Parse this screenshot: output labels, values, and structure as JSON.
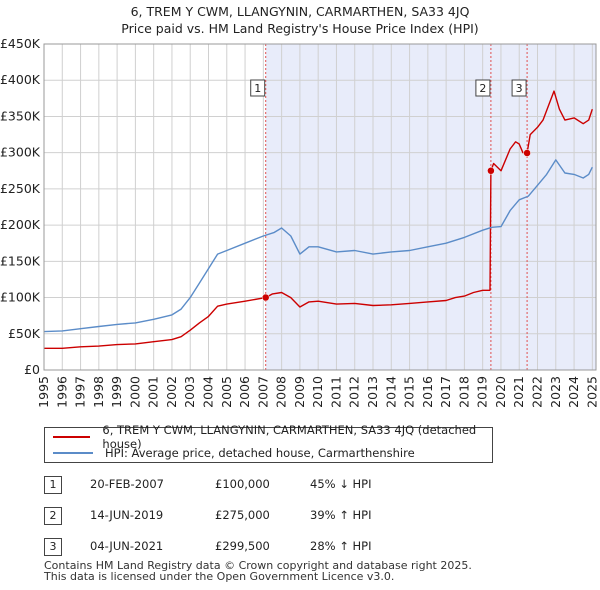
{
  "title_line1": "6, TREM Y CWM, LLANGYNIN, CARMARTHEN, SA33 4JQ",
  "title_line2": "Price paid vs. HM Land Registry's House Price Index (HPI)",
  "colors": {
    "property": "#cc0000",
    "hpi": "#5b8cc8",
    "shade": "#e8ecfa",
    "marker_line": "#e05050",
    "grid": "#d0d0d0"
  },
  "chart_data": {
    "type": "line",
    "title": "Price paid vs. HM Land Registry's House Price Index (HPI)",
    "xlabel": "",
    "ylabel": "",
    "xlim": [
      1995.0,
      2025.2
    ],
    "ylim": [
      0,
      450000
    ],
    "y_ticks": [
      0,
      50000,
      100000,
      150000,
      200000,
      250000,
      300000,
      350000,
      400000,
      450000
    ],
    "y_tick_labels": [
      "£0",
      "£50K",
      "£100K",
      "£150K",
      "£200K",
      "£250K",
      "£300K",
      "£350K",
      "£400K",
      "£450K"
    ],
    "x_ticks": [
      1995,
      1996,
      1997,
      1998,
      1999,
      2000,
      2001,
      2002,
      2003,
      2004,
      2005,
      2006,
      2007,
      2008,
      2009,
      2010,
      2011,
      2012,
      2013,
      2014,
      2015,
      2016,
      2017,
      2018,
      2019,
      2020,
      2021,
      2022,
      2023,
      2024,
      2025
    ],
    "shaded_range": [
      2007.13,
      2025.2
    ],
    "series": [
      {
        "name": "6, TREM Y CWM, LLANGYNIN, CARMARTHEN, SA33 4JQ (detached house)",
        "color": "#cc0000",
        "x": [
          1995.0,
          1996.0,
          1997.0,
          1998.0,
          1999.0,
          2000.0,
          2001.0,
          2002.0,
          2002.5,
          2003.0,
          2003.5,
          2004.0,
          2004.5,
          2005.0,
          2006.0,
          2007.13,
          2007.5,
          2008.0,
          2008.5,
          2009.0,
          2009.5,
          2010.0,
          2011.0,
          2012.0,
          2013.0,
          2014.0,
          2015.0,
          2016.0,
          2017.0,
          2017.5,
          2018.0,
          2018.5,
          2019.0,
          2019.4,
          2019.45,
          2019.6,
          2020.0,
          2020.5,
          2020.8,
          2021.0,
          2021.2,
          2021.43,
          2021.6,
          2022.0,
          2022.3,
          2022.6,
          2022.9,
          2023.2,
          2023.5,
          2024.0,
          2024.5,
          2024.8,
          2025.0
        ],
        "values": [
          30000,
          30000,
          32000,
          33000,
          35000,
          36000,
          39000,
          42000,
          46000,
          55000,
          65000,
          74000,
          88000,
          91000,
          95000,
          100000,
          105000,
          107000,
          100000,
          87000,
          94000,
          95000,
          91000,
          92000,
          89000,
          90000,
          92000,
          94000,
          96000,
          100000,
          102000,
          107000,
          110000,
          110000,
          275000,
          285000,
          275000,
          305000,
          315000,
          312000,
          300000,
          299500,
          325000,
          335000,
          345000,
          365000,
          385000,
          360000,
          345000,
          348000,
          340000,
          345000,
          360000
        ]
      },
      {
        "name": "HPI: Average price, detached house, Carmarthenshire",
        "color": "#5b8cc8",
        "x": [
          1995.0,
          1996.0,
          1997.0,
          1998.0,
          1999.0,
          2000.0,
          2001.0,
          2002.0,
          2002.5,
          2003.0,
          2003.5,
          2004.0,
          2004.5,
          2005.0,
          2006.0,
          2007.0,
          2007.6,
          2008.0,
          2008.5,
          2009.0,
          2009.5,
          2010.0,
          2011.0,
          2012.0,
          2013.0,
          2014.0,
          2015.0,
          2016.0,
          2017.0,
          2018.0,
          2019.0,
          2019.5,
          2020.0,
          2020.5,
          2021.0,
          2021.5,
          2022.0,
          2022.5,
          2023.0,
          2023.5,
          2024.0,
          2024.5,
          2024.8,
          2025.0
        ],
        "values": [
          53000,
          54000,
          57000,
          60000,
          63000,
          65000,
          70000,
          76000,
          84000,
          100000,
          120000,
          140000,
          160000,
          165000,
          175000,
          185000,
          190000,
          196000,
          185000,
          160000,
          170000,
          170000,
          163000,
          165000,
          160000,
          163000,
          165000,
          170000,
          175000,
          183000,
          193000,
          197000,
          198000,
          220000,
          235000,
          240000,
          255000,
          270000,
          290000,
          272000,
          270000,
          265000,
          270000,
          280000
        ]
      }
    ],
    "markers": [
      {
        "label": "1",
        "x": 2007.13,
        "y": 100000
      },
      {
        "label": "2",
        "x": 2019.45,
        "y": 275000
      },
      {
        "label": "3",
        "x": 2021.43,
        "y": 299500
      }
    ]
  },
  "legend": {
    "property_label": "6, TREM Y CWM, LLANGYNIN, CARMARTHEN, SA33 4JQ (detached house)",
    "hpi_label": "HPI: Average price, detached house, Carmarthenshire"
  },
  "sales": [
    {
      "num": "1",
      "date": "20-FEB-2007",
      "price": "£100,000",
      "hpi": "45% ↓ HPI"
    },
    {
      "num": "2",
      "date": "14-JUN-2019",
      "price": "£275,000",
      "hpi": "39% ↑ HPI"
    },
    {
      "num": "3",
      "date": "04-JUN-2021",
      "price": "£299,500",
      "hpi": "28% ↑ HPI"
    }
  ],
  "footer_line1": "Contains HM Land Registry data © Crown copyright and database right 2025.",
  "footer_line2": "This data is licensed under the Open Government Licence v3.0."
}
